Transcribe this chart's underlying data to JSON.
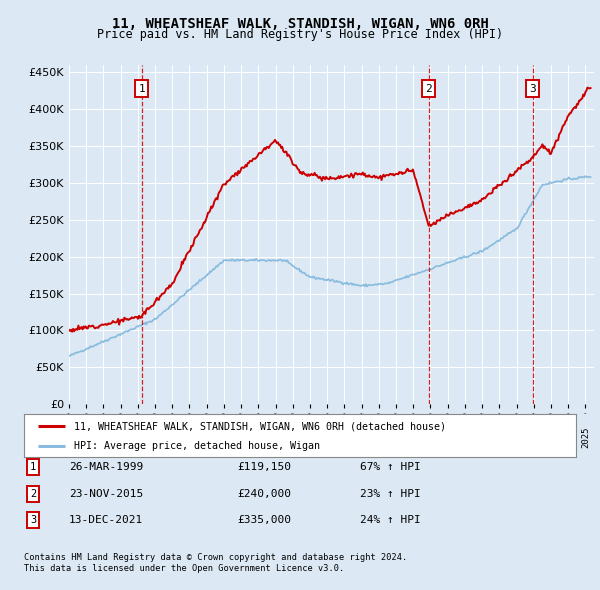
{
  "title": "11, WHEATSHEAF WALK, STANDISH, WIGAN, WN6 0RH",
  "subtitle": "Price paid vs. HM Land Registry's House Price Index (HPI)",
  "legend_line1": "11, WHEATSHEAF WALK, STANDISH, WIGAN, WN6 0RH (detached house)",
  "legend_line2": "HPI: Average price, detached house, Wigan",
  "footnote1": "Contains HM Land Registry data © Crown copyright and database right 2024.",
  "footnote2": "This data is licensed under the Open Government Licence v3.0.",
  "sale_markers": [
    {
      "num": 1,
      "date": "26-MAR-1999",
      "price": "£119,150",
      "hpi": "67% ↑ HPI",
      "x_year": 1999.23
    },
    {
      "num": 2,
      "date": "23-NOV-2015",
      "price": "£240,000",
      "hpi": "23% ↑ HPI",
      "x_year": 2015.9
    },
    {
      "num": 3,
      "date": "13-DEC-2021",
      "price": "£335,000",
      "hpi": "24% ↑ HPI",
      "x_year": 2021.95
    }
  ],
  "red_line_color": "#cc0000",
  "blue_line_color": "#88bbdd",
  "background_color": "#dce9f5",
  "ylim": [
    0,
    460000
  ],
  "yticks": [
    0,
    50000,
    100000,
    150000,
    200000,
    250000,
    300000,
    350000,
    400000,
    450000
  ],
  "xlim_start": 1995.0,
  "xlim_end": 2025.5
}
